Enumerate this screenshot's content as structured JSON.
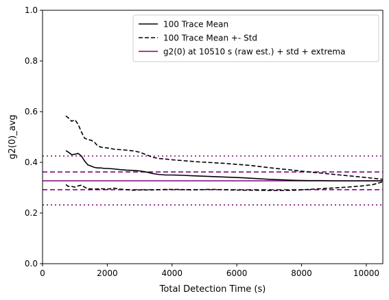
{
  "chart_data": {
    "type": "line",
    "xlabel": "Total Detection Time (s)",
    "ylabel": "g2(0)_avg",
    "xlim": [
      0,
      10510
    ],
    "ylim": [
      0.0,
      1.0
    ],
    "xticks": [
      0,
      2000,
      4000,
      6000,
      8000,
      10000
    ],
    "xtick_labels": [
      "0",
      "2000",
      "4000",
      "6000",
      "8000",
      "10000"
    ],
    "yticks": [
      0.0,
      0.2,
      0.4,
      0.6,
      0.8,
      1.0
    ],
    "ytick_labels": [
      "0.0",
      "0.2",
      "0.4",
      "0.6",
      "0.8",
      "1.0"
    ],
    "grid": false,
    "legend_position": "top-right",
    "series": [
      {
        "name": "100 Trace Mean",
        "color": "#000000",
        "style": "solid",
        "points": [
          [
            720,
            0.446
          ],
          [
            800,
            0.44
          ],
          [
            900,
            0.43
          ],
          [
            1000,
            0.432
          ],
          [
            1100,
            0.435
          ],
          [
            1200,
            0.425
          ],
          [
            1300,
            0.405
          ],
          [
            1400,
            0.39
          ],
          [
            1500,
            0.385
          ],
          [
            1600,
            0.38
          ],
          [
            1700,
            0.378
          ],
          [
            1800,
            0.378
          ],
          [
            1900,
            0.376
          ],
          [
            2000,
            0.376
          ],
          [
            2200,
            0.374
          ],
          [
            2400,
            0.371
          ],
          [
            2600,
            0.369
          ],
          [
            2800,
            0.368
          ],
          [
            3000,
            0.366
          ],
          [
            3200,
            0.362
          ],
          [
            3400,
            0.356
          ],
          [
            3600,
            0.352
          ],
          [
            3800,
            0.35
          ],
          [
            4000,
            0.35
          ],
          [
            4300,
            0.349
          ],
          [
            4600,
            0.347
          ],
          [
            5000,
            0.345
          ],
          [
            5400,
            0.343
          ],
          [
            5800,
            0.341
          ],
          [
            6200,
            0.339
          ],
          [
            6600,
            0.336
          ],
          [
            7000,
            0.333
          ],
          [
            7400,
            0.331
          ],
          [
            7800,
            0.329
          ],
          [
            8200,
            0.328
          ],
          [
            8600,
            0.328
          ],
          [
            9000,
            0.327
          ],
          [
            9400,
            0.327
          ],
          [
            9800,
            0.327
          ],
          [
            10200,
            0.327
          ],
          [
            10510,
            0.327
          ]
        ]
      },
      {
        "name": "100 Trace Mean +- Std",
        "color": "#000000",
        "style": "dashed",
        "points": [
          [
            720,
            0.583
          ],
          [
            800,
            0.575
          ],
          [
            900,
            0.562
          ],
          [
            1000,
            0.568
          ],
          [
            1100,
            0.55
          ],
          [
            1200,
            0.52
          ],
          [
            1300,
            0.495
          ],
          [
            1400,
            0.49
          ],
          [
            1500,
            0.487
          ],
          [
            1600,
            0.48
          ],
          [
            1700,
            0.465
          ],
          [
            1800,
            0.46
          ],
          [
            1900,
            0.458
          ],
          [
            2000,
            0.457
          ],
          [
            2200,
            0.452
          ],
          [
            2400,
            0.45
          ],
          [
            2600,
            0.448
          ],
          [
            2800,
            0.445
          ],
          [
            3000,
            0.44
          ],
          [
            3200,
            0.43
          ],
          [
            3400,
            0.42
          ],
          [
            3600,
            0.415
          ],
          [
            3800,
            0.413
          ],
          [
            4000,
            0.41
          ],
          [
            4400,
            0.406
          ],
          [
            4800,
            0.402
          ],
          [
            5200,
            0.399
          ],
          [
            5600,
            0.396
          ],
          [
            6000,
            0.392
          ],
          [
            6400,
            0.388
          ],
          [
            6800,
            0.382
          ],
          [
            7200,
            0.376
          ],
          [
            7600,
            0.371
          ],
          [
            8000,
            0.365
          ],
          [
            8400,
            0.36
          ],
          [
            8800,
            0.355
          ],
          [
            9200,
            0.35
          ],
          [
            9600,
            0.345
          ],
          [
            10000,
            0.34
          ],
          [
            10510,
            0.333
          ]
        ]
      },
      {
        "name": "",
        "color": "#000000",
        "style": "dashed",
        "points": [
          [
            720,
            0.312
          ],
          [
            800,
            0.305
          ],
          [
            900,
            0.305
          ],
          [
            1000,
            0.302
          ],
          [
            1100,
            0.307
          ],
          [
            1200,
            0.31
          ],
          [
            1300,
            0.302
          ],
          [
            1400,
            0.296
          ],
          [
            1600,
            0.294
          ],
          [
            1800,
            0.296
          ],
          [
            2000,
            0.294
          ],
          [
            2200,
            0.298
          ],
          [
            2400,
            0.294
          ],
          [
            2600,
            0.292
          ],
          [
            2800,
            0.29
          ],
          [
            3000,
            0.291
          ],
          [
            3400,
            0.291
          ],
          [
            3800,
            0.293
          ],
          [
            4200,
            0.293
          ],
          [
            4600,
            0.291
          ],
          [
            5000,
            0.293
          ],
          [
            5400,
            0.293
          ],
          [
            5800,
            0.291
          ],
          [
            6200,
            0.29
          ],
          [
            6600,
            0.29
          ],
          [
            7000,
            0.289
          ],
          [
            7400,
            0.289
          ],
          [
            7800,
            0.29
          ],
          [
            8200,
            0.293
          ],
          [
            8600,
            0.296
          ],
          [
            9000,
            0.299
          ],
          [
            9400,
            0.302
          ],
          [
            9800,
            0.306
          ],
          [
            10200,
            0.312
          ],
          [
            10510,
            0.323
          ]
        ]
      }
    ],
    "reference_lines": {
      "name": "g2(0) at 10510 s (raw est.) + std + extrema",
      "color": "#800080",
      "value": 0.327,
      "std_band": [
        0.292,
        0.362
      ],
      "extrema": [
        0.232,
        0.425
      ]
    },
    "legend_entries": [
      {
        "label": "100 Trace Mean",
        "style": "solid",
        "color": "#000000"
      },
      {
        "label": "100 Trace Mean +- Std",
        "style": "dashed",
        "color": "#000000"
      },
      {
        "label": "g2(0) at 10510 s (raw est.) + std + extrema",
        "style": "solid",
        "color": "#800080"
      }
    ]
  }
}
